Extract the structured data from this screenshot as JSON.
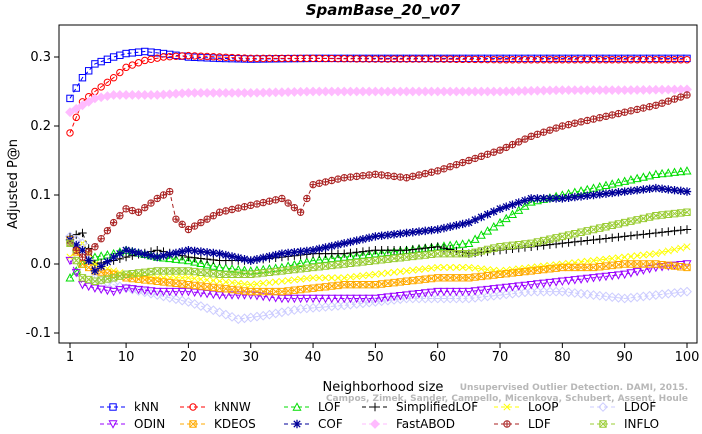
{
  "chart_data": {
    "type": "line",
    "title": "SpamBase_20_v07",
    "xlabel": "Neighborhood size",
    "ylabel": "Adjusted P@n",
    "xlim": [
      1,
      100
    ],
    "ylim": [
      -0.1,
      0.35
    ],
    "x_ticks": [
      "1",
      "10",
      "20",
      "30",
      "40",
      "50",
      "60",
      "70",
      "80",
      "90",
      "100"
    ],
    "y_ticks": [
      "-0.1",
      "0.0",
      "0.1",
      "0.2",
      "0.3"
    ],
    "x_tick_values": [
      1,
      10,
      20,
      30,
      40,
      50,
      60,
      70,
      80,
      90,
      100
    ],
    "y_tick_values": [
      -0.1,
      0.0,
      0.1,
      0.2,
      0.3
    ],
    "watermark_line1": "Unsupervised Outlier Detection. DAMI, 2015.",
    "watermark_line2": "Campos, Zimek, Sander, Campello, Micenkova, Schubert, Assent, Houle",
    "legend_position": "bottom",
    "series": [
      {
        "name": "kNN",
        "color": "#0000ff",
        "marker": "square",
        "x": [
          1,
          3,
          5,
          8,
          10,
          13,
          16,
          20,
          25,
          30,
          40,
          50,
          60,
          70,
          80,
          90,
          100
        ],
        "y": [
          0.24,
          0.27,
          0.29,
          0.3,
          0.305,
          0.308,
          0.305,
          0.3,
          0.298,
          0.297,
          0.298,
          0.298,
          0.298,
          0.298,
          0.298,
          0.298,
          0.298
        ]
      },
      {
        "name": "kNNW",
        "color": "#ff0000",
        "marker": "circle",
        "x": [
          1,
          3,
          5,
          8,
          10,
          13,
          16,
          20,
          25,
          30,
          40,
          50,
          60,
          70,
          80,
          90,
          100
        ],
        "y": [
          0.19,
          0.235,
          0.25,
          0.27,
          0.285,
          0.295,
          0.3,
          0.302,
          0.3,
          0.298,
          0.298,
          0.297,
          0.297,
          0.296,
          0.296,
          0.296,
          0.296
        ]
      },
      {
        "name": "LOF",
        "color": "#00dd00",
        "marker": "triangle",
        "x": [
          1,
          3,
          5,
          8,
          10,
          15,
          20,
          25,
          30,
          35,
          40,
          45,
          50,
          55,
          60,
          65,
          70,
          75,
          80,
          85,
          90,
          95,
          100
        ],
        "y": [
          -0.02,
          0.0,
          0.01,
          0.015,
          0.02,
          0.01,
          0.005,
          -0.005,
          -0.01,
          -0.005,
          0.005,
          0.01,
          0.015,
          0.02,
          0.025,
          0.03,
          0.06,
          0.09,
          0.1,
          0.11,
          0.12,
          0.13,
          0.135
        ]
      },
      {
        "name": "SimplifiedLOF",
        "color": "#000000",
        "marker": "plus",
        "x": [
          1,
          3,
          5,
          8,
          10,
          15,
          20,
          25,
          30,
          35,
          40,
          45,
          50,
          55,
          60,
          65,
          70,
          75,
          80,
          85,
          90,
          95,
          100
        ],
        "y": [
          0.04,
          0.045,
          0.0,
          0.005,
          0.01,
          0.02,
          0.01,
          0.005,
          0.005,
          0.01,
          0.015,
          0.015,
          0.02,
          0.02,
          0.025,
          0.015,
          0.02,
          0.025,
          0.03,
          0.035,
          0.04,
          0.045,
          0.05
        ]
      },
      {
        "name": "LoOP",
        "color": "#ffff00",
        "marker": "x",
        "x": [
          1,
          3,
          5,
          8,
          10,
          15,
          20,
          25,
          30,
          35,
          40,
          45,
          50,
          55,
          60,
          65,
          70,
          75,
          80,
          85,
          90,
          95,
          100
        ],
        "y": [
          0.01,
          0.03,
          0.0,
          -0.01,
          -0.015,
          -0.02,
          -0.02,
          -0.025,
          -0.03,
          -0.025,
          -0.02,
          -0.02,
          -0.015,
          -0.01,
          -0.005,
          -0.005,
          -0.01,
          -0.005,
          0.0,
          0.005,
          0.01,
          0.015,
          0.025
        ]
      },
      {
        "name": "LDOF",
        "color": "#ccccff",
        "marker": "diamond",
        "x": [
          1,
          3,
          5,
          8,
          10,
          15,
          20,
          25,
          28,
          32,
          38,
          45,
          50,
          55,
          60,
          65,
          70,
          75,
          80,
          85,
          90,
          95,
          100
        ],
        "y": [
          0.04,
          0.03,
          -0.02,
          -0.03,
          -0.035,
          -0.045,
          -0.055,
          -0.07,
          -0.08,
          -0.075,
          -0.065,
          -0.06,
          -0.055,
          -0.05,
          -0.05,
          -0.05,
          -0.045,
          -0.04,
          -0.04,
          -0.045,
          -0.05,
          -0.045,
          -0.04
        ]
      },
      {
        "name": "ODIN",
        "color": "#9900ff",
        "marker": "triangle-down",
        "x": [
          1,
          3,
          5,
          8,
          10,
          15,
          20,
          25,
          30,
          35,
          40,
          45,
          50,
          55,
          60,
          65,
          70,
          75,
          80,
          85,
          90,
          95,
          100
        ],
        "y": [
          0.005,
          -0.03,
          -0.035,
          -0.04,
          -0.035,
          -0.04,
          -0.04,
          -0.045,
          -0.045,
          -0.05,
          -0.05,
          -0.05,
          -0.05,
          -0.045,
          -0.04,
          -0.04,
          -0.035,
          -0.03,
          -0.025,
          -0.02,
          -0.015,
          -0.005,
          0.0
        ]
      },
      {
        "name": "KDEOS",
        "color": "#ffaa00",
        "marker": "square-x",
        "x": [
          1,
          3,
          5,
          8,
          10,
          15,
          20,
          25,
          30,
          35,
          40,
          45,
          50,
          55,
          60,
          65,
          70,
          75,
          80,
          85,
          90,
          95,
          100
        ],
        "y": [
          0.035,
          0.0,
          -0.01,
          -0.015,
          -0.02,
          -0.025,
          -0.03,
          -0.035,
          -0.04,
          -0.04,
          -0.035,
          -0.03,
          -0.03,
          -0.025,
          -0.02,
          -0.02,
          -0.015,
          -0.01,
          -0.005,
          -0.005,
          0.0,
          0.0,
          -0.005
        ]
      },
      {
        "name": "COF",
        "color": "#000099",
        "marker": "star",
        "x": [
          1,
          3,
          5,
          8,
          10,
          15,
          20,
          25,
          30,
          35,
          40,
          45,
          50,
          55,
          60,
          65,
          70,
          75,
          80,
          85,
          90,
          95,
          100
        ],
        "y": [
          0.035,
          0.02,
          -0.01,
          0.01,
          0.02,
          0.01,
          0.02,
          0.015,
          0.005,
          0.015,
          0.02,
          0.03,
          0.04,
          0.045,
          0.05,
          0.06,
          0.08,
          0.095,
          0.095,
          0.1,
          0.105,
          0.11,
          0.105
        ]
      },
      {
        "name": "FastABOD",
        "color": "#ffbbff",
        "marker": "diamond-filled",
        "x": [
          1,
          3,
          5,
          8,
          10,
          15,
          20,
          30,
          40,
          50,
          60,
          70,
          80,
          90,
          100
        ],
        "y": [
          0.22,
          0.23,
          0.24,
          0.245,
          0.245,
          0.245,
          0.248,
          0.248,
          0.25,
          0.25,
          0.25,
          0.25,
          0.252,
          0.252,
          0.253
        ]
      },
      {
        "name": "LDF",
        "color": "#aa2222",
        "marker": "circle-plus",
        "x": [
          1,
          3,
          5,
          8,
          10,
          12,
          15,
          17,
          18,
          20,
          25,
          30,
          35,
          38,
          40,
          45,
          50,
          55,
          60,
          65,
          70,
          75,
          80,
          85,
          90,
          95,
          100
        ],
        "y": [
          0.03,
          0.01,
          0.025,
          0.06,
          0.08,
          0.075,
          0.095,
          0.105,
          0.065,
          0.05,
          0.075,
          0.085,
          0.095,
          0.075,
          0.115,
          0.125,
          0.13,
          0.125,
          0.135,
          0.15,
          0.165,
          0.185,
          0.2,
          0.21,
          0.22,
          0.23,
          0.245
        ]
      },
      {
        "name": "INFLO",
        "color": "#99cc33",
        "marker": "square-x",
        "x": [
          1,
          3,
          5,
          8,
          10,
          15,
          20,
          25,
          30,
          35,
          40,
          45,
          50,
          55,
          60,
          65,
          70,
          75,
          80,
          85,
          90,
          95,
          100
        ],
        "y": [
          0.03,
          -0.02,
          -0.025,
          -0.02,
          -0.015,
          -0.01,
          -0.01,
          -0.015,
          -0.015,
          -0.01,
          -0.005,
          0.0,
          0.005,
          0.01,
          0.015,
          0.015,
          0.025,
          0.03,
          0.04,
          0.05,
          0.06,
          0.07,
          0.075
        ]
      }
    ]
  }
}
